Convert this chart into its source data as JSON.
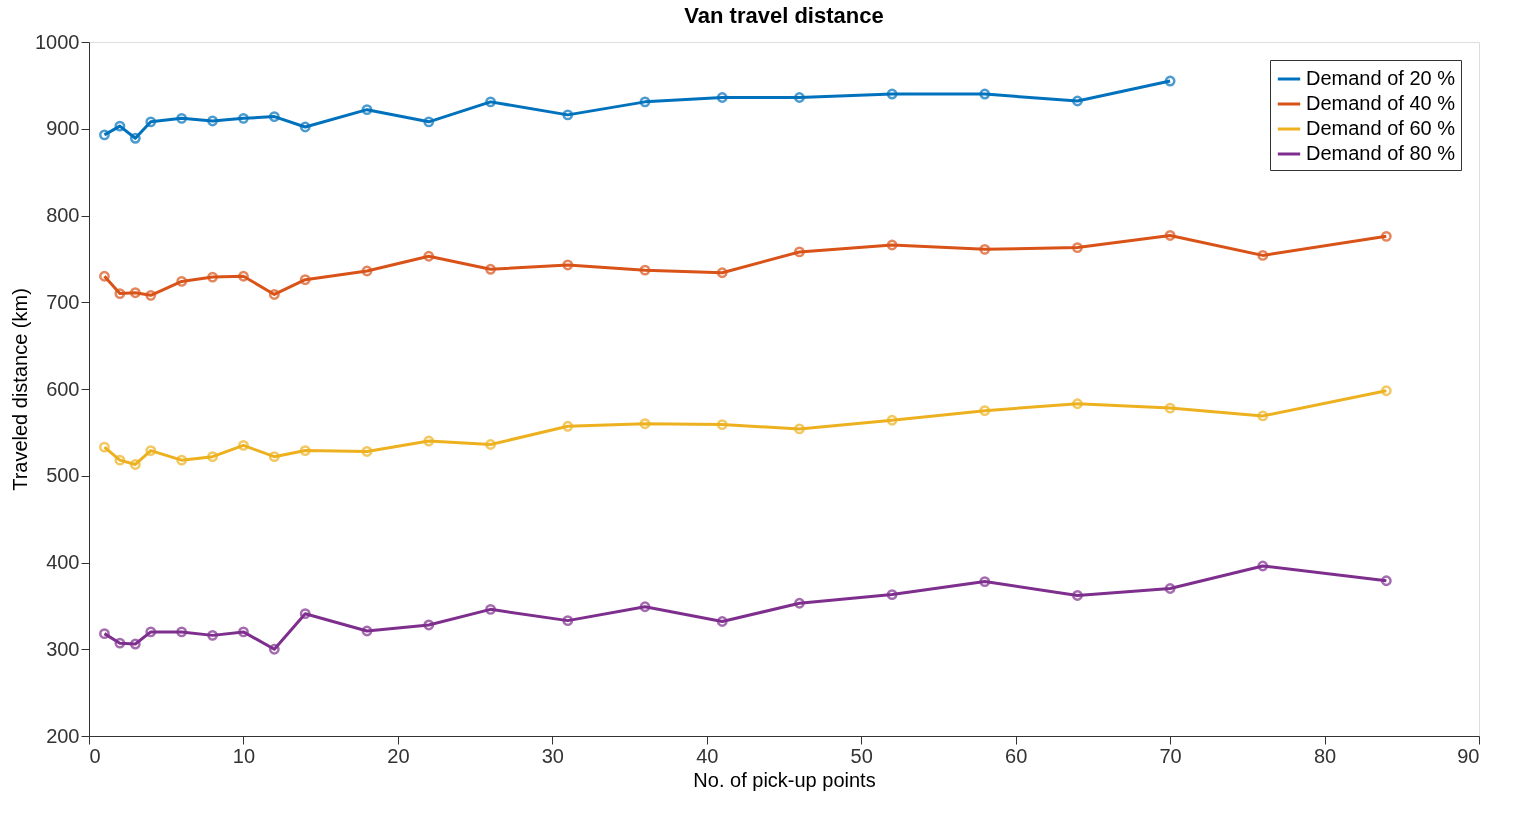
{
  "chart_data": {
    "type": "line",
    "title": "Van travel distance",
    "xlabel": "No. of pick-up points",
    "ylabel": "Traveled distance (km)",
    "x": [
      1,
      2,
      3,
      4,
      6,
      8,
      10,
      12,
      14,
      18,
      22,
      26,
      31,
      36,
      41,
      46,
      52,
      58,
      64,
      70,
      76,
      84
    ],
    "series": [
      {
        "name": "Demand of 20 %",
        "color": "#0072bd",
        "values": [
          893,
          903,
          889,
          908,
          912,
          909,
          912,
          914,
          902,
          922,
          908,
          931,
          916,
          931,
          936,
          936,
          940,
          940,
          932,
          955,
          null,
          null
        ]
      },
      {
        "name": "Demand of 40 %",
        "color": "#d95319",
        "values": [
          730,
          710,
          711,
          708,
          724,
          729,
          730,
          709,
          726,
          736,
          753,
          738,
          743,
          737,
          734,
          758,
          766,
          761,
          763,
          777,
          754,
          776
        ]
      },
      {
        "name": "Demand of 60 %",
        "color": "#edb120",
        "values": [
          533,
          518,
          513,
          529,
          518,
          522,
          535,
          522,
          529,
          528,
          540,
          536,
          557,
          560,
          559,
          554,
          564,
          575,
          583,
          578,
          569,
          598
        ]
      },
      {
        "name": "Demand of 80 %",
        "color": "#7e2f8e",
        "values": [
          318,
          307,
          306,
          320,
          320,
          316,
          320,
          300,
          341,
          321,
          328,
          346,
          333,
          349,
          332,
          353,
          363,
          378,
          362,
          370,
          396,
          379
        ]
      }
    ],
    "xlim": [
      0,
      90
    ],
    "xticks": [
      0,
      10,
      20,
      30,
      40,
      50,
      60,
      70,
      80,
      90
    ],
    "ylim": [
      200,
      1000
    ],
    "yticks": [
      200,
      300,
      400,
      500,
      600,
      700,
      800,
      900,
      1000
    ],
    "grid": false,
    "legend": "top right",
    "marker": "circle",
    "line_style": "solid"
  }
}
